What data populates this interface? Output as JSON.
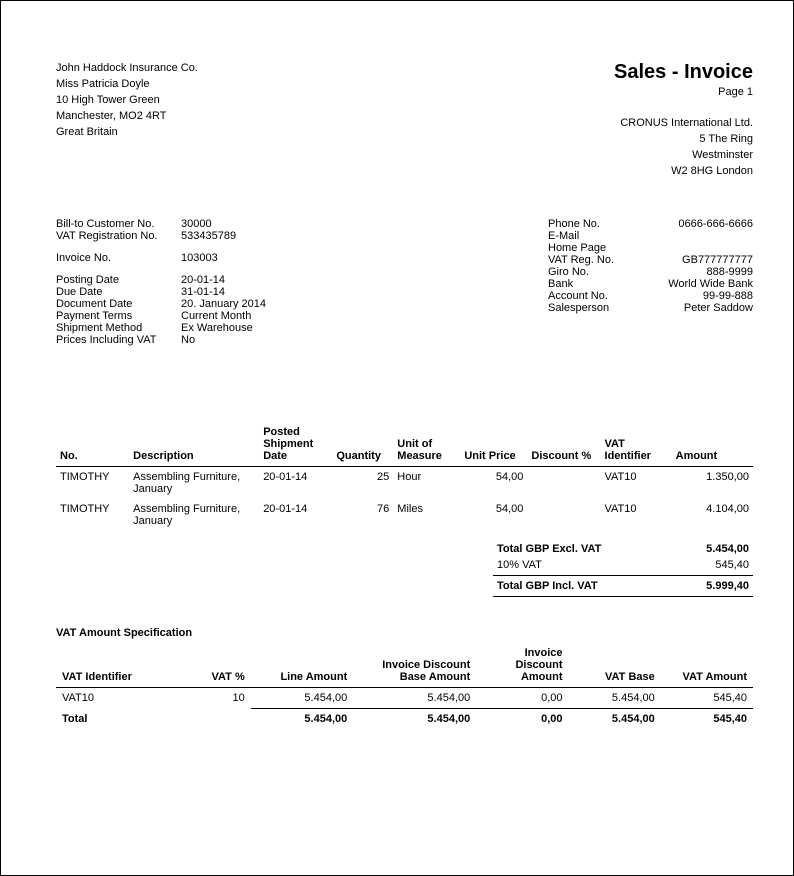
{
  "title": "Sales - Invoice",
  "page_label": "Page  1",
  "customer": {
    "name": "John Haddock Insurance Co.",
    "contact": "Miss Patricia Doyle",
    "addr1": "10 High Tower Green",
    "addr2": "Manchester, MO2 4RT",
    "country": "Great Britain"
  },
  "company": {
    "name": "CRONUS International Ltd.",
    "addr1": "5 The Ring",
    "addr2": "Westminster",
    "addr3": "W2 8HG London"
  },
  "meta_left": {
    "billto_label": "Bill-to Customer No.",
    "billto": "30000",
    "vatreg_label": "VAT Registration No.",
    "vatreg": "533435789",
    "invoice_label": "Invoice No.",
    "invoice": "103003",
    "posting_label": "Posting Date",
    "posting": "20-01-14",
    "due_label": "Due Date",
    "due": "31-01-14",
    "docdate_label": "Document Date",
    "docdate": "20. January 2014",
    "payterms_label": "Payment Terms",
    "payterms": "Current Month",
    "shipmethod_label": "Shipment Method",
    "shipmethod": "Ex Warehouse",
    "pricesvat_label": "Prices Including VAT",
    "pricesvat": "No"
  },
  "meta_right": {
    "phone_label": "Phone No.",
    "phone": "0666-666-6666",
    "email_label": "E-Mail",
    "email": "",
    "homepage_label": "Home Page",
    "homepage": "",
    "vatregno_label": "VAT Reg. No.",
    "vatregno": "GB777777777",
    "giro_label": "Giro No.",
    "giro": "888-9999",
    "bank_label": "Bank",
    "bank": "World Wide Bank",
    "account_label": "Account No.",
    "account": "99-99-888",
    "salesperson_label": "Salesperson",
    "salesperson": "Peter Saddow"
  },
  "lines_header": {
    "no": "No.",
    "desc": "Description",
    "shipdate": "Posted Shipment Date",
    "qty": "Quantity",
    "uom": "Unit of Measure",
    "price": "Unit Price",
    "disc": "Discount %",
    "vatid": "VAT Identifier",
    "amount": "Amount"
  },
  "lines": [
    {
      "no": "TIMOTHY",
      "desc": "Assembling Furniture, January",
      "shipdate": "20-01-14",
      "qty": "25",
      "uom": "Hour",
      "price": "54,00",
      "disc": "",
      "vatid": "VAT10",
      "amount": "1.350,00"
    },
    {
      "no": "TIMOTHY",
      "desc": "Assembling Furniture, January",
      "shipdate": "20-01-14",
      "qty": "76",
      "uom": "Miles",
      "price": "54,00",
      "disc": "",
      "vatid": "VAT10",
      "amount": "4.104,00"
    }
  ],
  "totals": {
    "excl_label": "Total GBP Excl. VAT",
    "excl": "5.454,00",
    "vat_label": "10% VAT",
    "vat": "545,40",
    "incl_label": "Total GBP Incl. VAT",
    "incl": "5.999,40"
  },
  "vat_title": "VAT Amount Specification",
  "vat_header": {
    "id": "VAT Identifier",
    "pct": "VAT %",
    "lineamt": "Line Amount",
    "discbase": "Invoice Discount Base Amount",
    "discamt": "Invoice Discount Amount",
    "base": "VAT Base",
    "amount": "VAT Amount"
  },
  "vat_rows": [
    {
      "id": "VAT10",
      "pct": "10",
      "lineamt": "5.454,00",
      "discbase": "5.454,00",
      "discamt": "0,00",
      "base": "5.454,00",
      "amount": "545,40"
    }
  ],
  "vat_total": {
    "label": "Total",
    "lineamt": "5.454,00",
    "discbase": "5.454,00",
    "discamt": "0,00",
    "base": "5.454,00",
    "amount": "545,40"
  }
}
